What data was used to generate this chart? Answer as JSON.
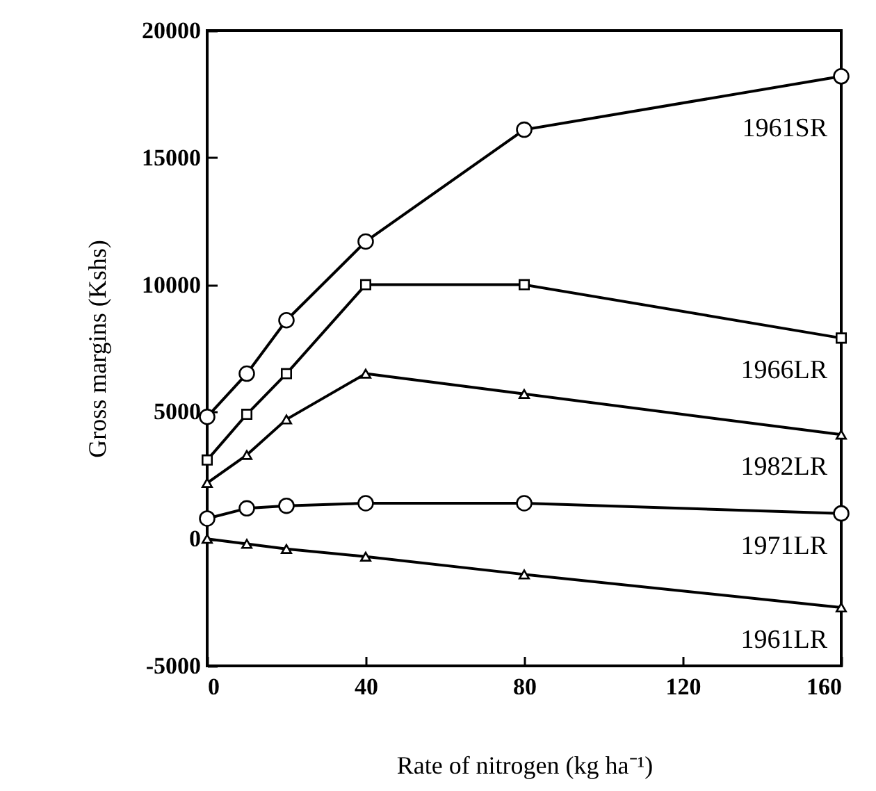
{
  "chart_data": {
    "type": "line",
    "xlabel": "Rate of nitrogen (kg ha⁻¹)",
    "ylabel": "Gross margins (Kshs)",
    "x": [
      0,
      10,
      20,
      40,
      80,
      160
    ],
    "xlim": [
      0,
      160
    ],
    "xticks": [
      0,
      40,
      80,
      120,
      160
    ],
    "ylim": [
      -5000,
      20000
    ],
    "yticks": [
      -5000,
      0,
      5000,
      10000,
      15000,
      20000
    ],
    "grid": false,
    "line_style": "solid",
    "series": [
      {
        "name": "1961SR",
        "color": "#000000",
        "marker": "circle",
        "values": [
          4800,
          6500,
          8600,
          11700,
          16100,
          18200
        ]
      },
      {
        "name": "1966LR",
        "color": "#000000",
        "marker": "square",
        "values": [
          3100,
          4900,
          6500,
          10000,
          10000,
          7900
        ]
      },
      {
        "name": "1982LR",
        "color": "#000000",
        "marker": "triangle",
        "values": [
          2200,
          3300,
          4700,
          6500,
          5700,
          4100
        ]
      },
      {
        "name": "1971LR",
        "color": "#000000",
        "marker": "circle",
        "values": [
          800,
          1200,
          1300,
          1400,
          1400,
          1000
        ]
      },
      {
        "name": "1961LR",
        "color": "#000000",
        "marker": "triangle",
        "values": [
          0,
          -200,
          -400,
          -700,
          -1400,
          -2700
        ]
      }
    ]
  }
}
